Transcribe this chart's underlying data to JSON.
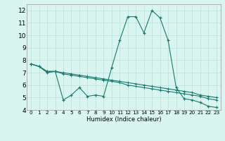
{
  "xlabel": "Humidex (Indice chaleur)",
  "x_values": [
    0,
    1,
    2,
    3,
    4,
    5,
    6,
    7,
    8,
    9,
    10,
    11,
    12,
    13,
    14,
    15,
    16,
    17,
    18,
    19,
    20,
    21,
    22,
    23
  ],
  "line1": [
    7.7,
    7.5,
    7.0,
    7.1,
    4.8,
    5.2,
    5.8,
    5.1,
    5.2,
    5.1,
    7.4,
    9.6,
    11.5,
    11.5,
    10.2,
    12.0,
    11.4,
    9.6,
    5.8,
    4.9,
    4.8,
    4.6,
    4.3,
    4.2
  ],
  "line2": [
    7.7,
    7.5,
    7.1,
    7.1,
    7.0,
    6.9,
    6.8,
    6.7,
    6.6,
    6.5,
    6.4,
    6.3,
    6.2,
    6.1,
    6.0,
    5.9,
    5.8,
    5.7,
    5.6,
    5.5,
    5.4,
    5.2,
    5.1,
    5.0
  ],
  "line3": [
    7.7,
    7.5,
    7.1,
    7.1,
    6.9,
    6.8,
    6.7,
    6.6,
    6.5,
    6.4,
    6.3,
    6.2,
    6.0,
    5.9,
    5.8,
    5.7,
    5.6,
    5.5,
    5.4,
    5.3,
    5.2,
    5.1,
    4.9,
    4.8
  ],
  "line_color": "#1a7a6e",
  "bg_color": "#d8f5f0",
  "grid_color": "#c0ddd8",
  "ylim": [
    4,
    12.5
  ],
  "yticks": [
    4,
    5,
    6,
    7,
    8,
    9,
    10,
    11,
    12
  ],
  "xlim": [
    -0.5,
    23.5
  ],
  "xlabel_fontsize": 6.0,
  "ytick_fontsize": 6.5,
  "xtick_fontsize": 5.2
}
